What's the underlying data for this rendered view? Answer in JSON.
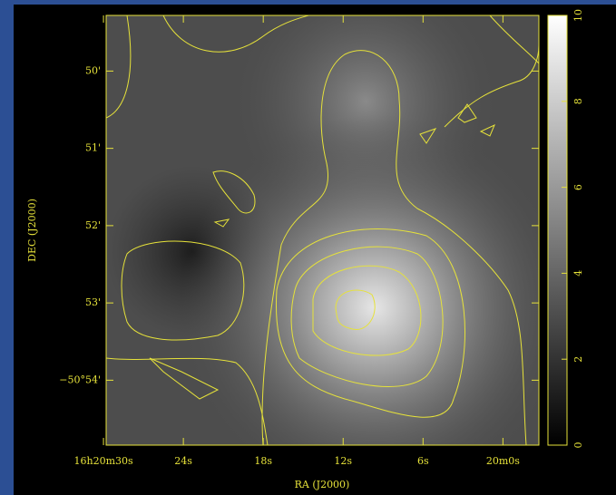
{
  "chart_data": {
    "type": "image",
    "xlabel": "RA (J2000)",
    "ylabel": "DEC (J2000)",
    "xlim": [
      29.8,
      -2.7
    ],
    "xticks": [
      {
        "value": 30,
        "label": "16h20m30s"
      },
      {
        "value": 24,
        "label": "24s"
      },
      {
        "value": 18,
        "label": "18s"
      },
      {
        "value": 12,
        "label": "12s"
      },
      {
        "value": 6,
        "label": "6s"
      },
      {
        "value": 0,
        "label": "20m0s"
      }
    ],
    "ylim": [
      54.84,
      49.28
    ],
    "yticks": [
      {
        "value": 50,
        "label": "50'"
      },
      {
        "value": 51,
        "label": "51'"
      },
      {
        "value": 52,
        "label": "52'"
      },
      {
        "value": 53,
        "label": "53'"
      },
      {
        "value": 54,
        "label": "−50°54'"
      }
    ],
    "clim": [
      0,
      10
    ],
    "cticks": [
      0,
      2,
      4,
      6,
      8,
      10
    ],
    "color": "#e6e23a"
  }
}
